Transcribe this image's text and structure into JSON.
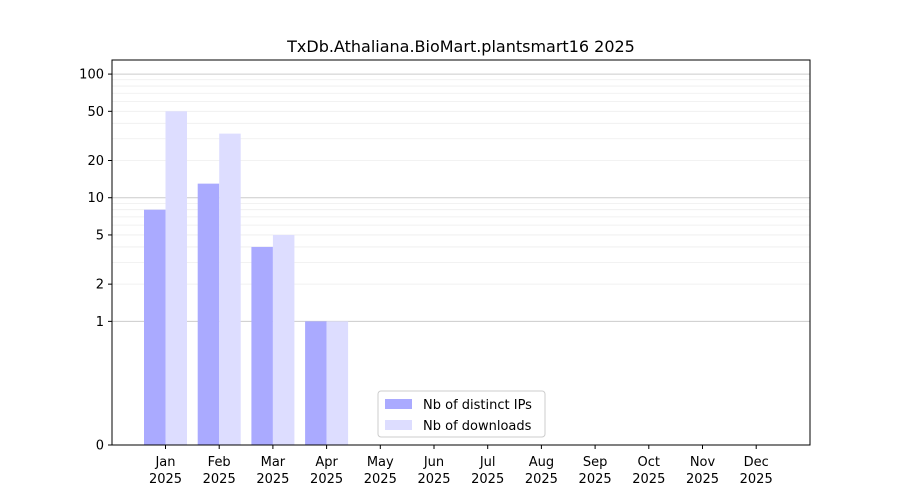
{
  "chart_data": {
    "type": "bar",
    "title": "TxDb.Athaliana.BioMart.plantsmart16 2025",
    "xlabel": "",
    "ylabel": "",
    "y_scale": "symlog",
    "ylim": [
      0,
      130
    ],
    "grid": "horizontal",
    "legend_position": "bottom-center",
    "categories": [
      {
        "month": "Jan",
        "year": "2025"
      },
      {
        "month": "Feb",
        "year": "2025"
      },
      {
        "month": "Mar",
        "year": "2025"
      },
      {
        "month": "Apr",
        "year": "2025"
      },
      {
        "month": "May",
        "year": "2025"
      },
      {
        "month": "Jun",
        "year": "2025"
      },
      {
        "month": "Jul",
        "year": "2025"
      },
      {
        "month": "Aug",
        "year": "2025"
      },
      {
        "month": "Sep",
        "year": "2025"
      },
      {
        "month": "Oct",
        "year": "2025"
      },
      {
        "month": "Nov",
        "year": "2025"
      },
      {
        "month": "Dec",
        "year": "2025"
      }
    ],
    "y_ticks": [
      {
        "value": 0,
        "label": "0"
      },
      {
        "value": 1,
        "label": "1"
      },
      {
        "value": 2,
        "label": "2"
      },
      {
        "value": 5,
        "label": "5"
      },
      {
        "value": 10,
        "label": "10"
      },
      {
        "value": 20,
        "label": "20"
      },
      {
        "value": 50,
        "label": "50"
      },
      {
        "value": 100,
        "label": "100"
      }
    ],
    "series": [
      {
        "name": "Nb of distinct IPs",
        "color": "#aaaaff",
        "values": [
          8,
          13,
          4,
          1,
          0,
          0,
          0,
          0,
          0,
          0,
          0,
          0
        ]
      },
      {
        "name": "Nb of downloads",
        "color": "#ddddff",
        "values": [
          50,
          33,
          5,
          1,
          0,
          0,
          0,
          0,
          0,
          0,
          0,
          0
        ]
      }
    ]
  }
}
